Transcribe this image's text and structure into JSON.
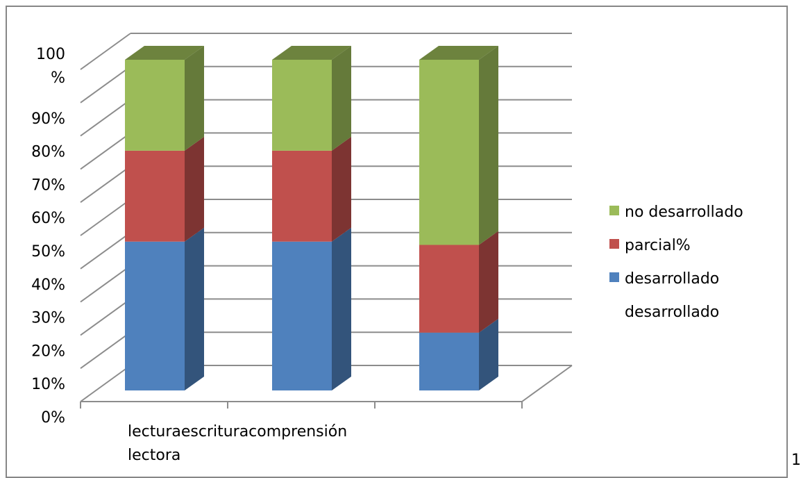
{
  "chart_data": {
    "type": "bar",
    "stacked": true,
    "three_d": true,
    "percent_stacked": true,
    "categories": [
      "lectura",
      "escritura",
      "comprensión lectora"
    ],
    "series": [
      {
        "name": "desarrollado",
        "values": [
          45,
          45,
          17.5
        ],
        "color": "#4F81BD"
      },
      {
        "name": "parcial%",
        "values": [
          27.5,
          27.5,
          26.5
        ],
        "color": "#C0504D"
      },
      {
        "name": "no desarrollado",
        "values": [
          27.5,
          27.5,
          56
        ],
        "color": "#9BBB59"
      }
    ],
    "y_tick_labels": [
      "0%",
      "10%",
      "20%",
      "30%",
      "40%",
      "50%",
      "60%",
      "70%",
      "80%",
      "90%",
      "100\n%"
    ],
    "category_label_text": [
      "lecturaescrituracomprensión",
      "lectora"
    ],
    "ylim": [
      0,
      100
    ],
    "grid": true,
    "legend_position": "right",
    "legend_entries": [
      "no desarrollado",
      "parcial%",
      "desarrollado",
      "desarrollado"
    ]
  },
  "page_number": "1"
}
